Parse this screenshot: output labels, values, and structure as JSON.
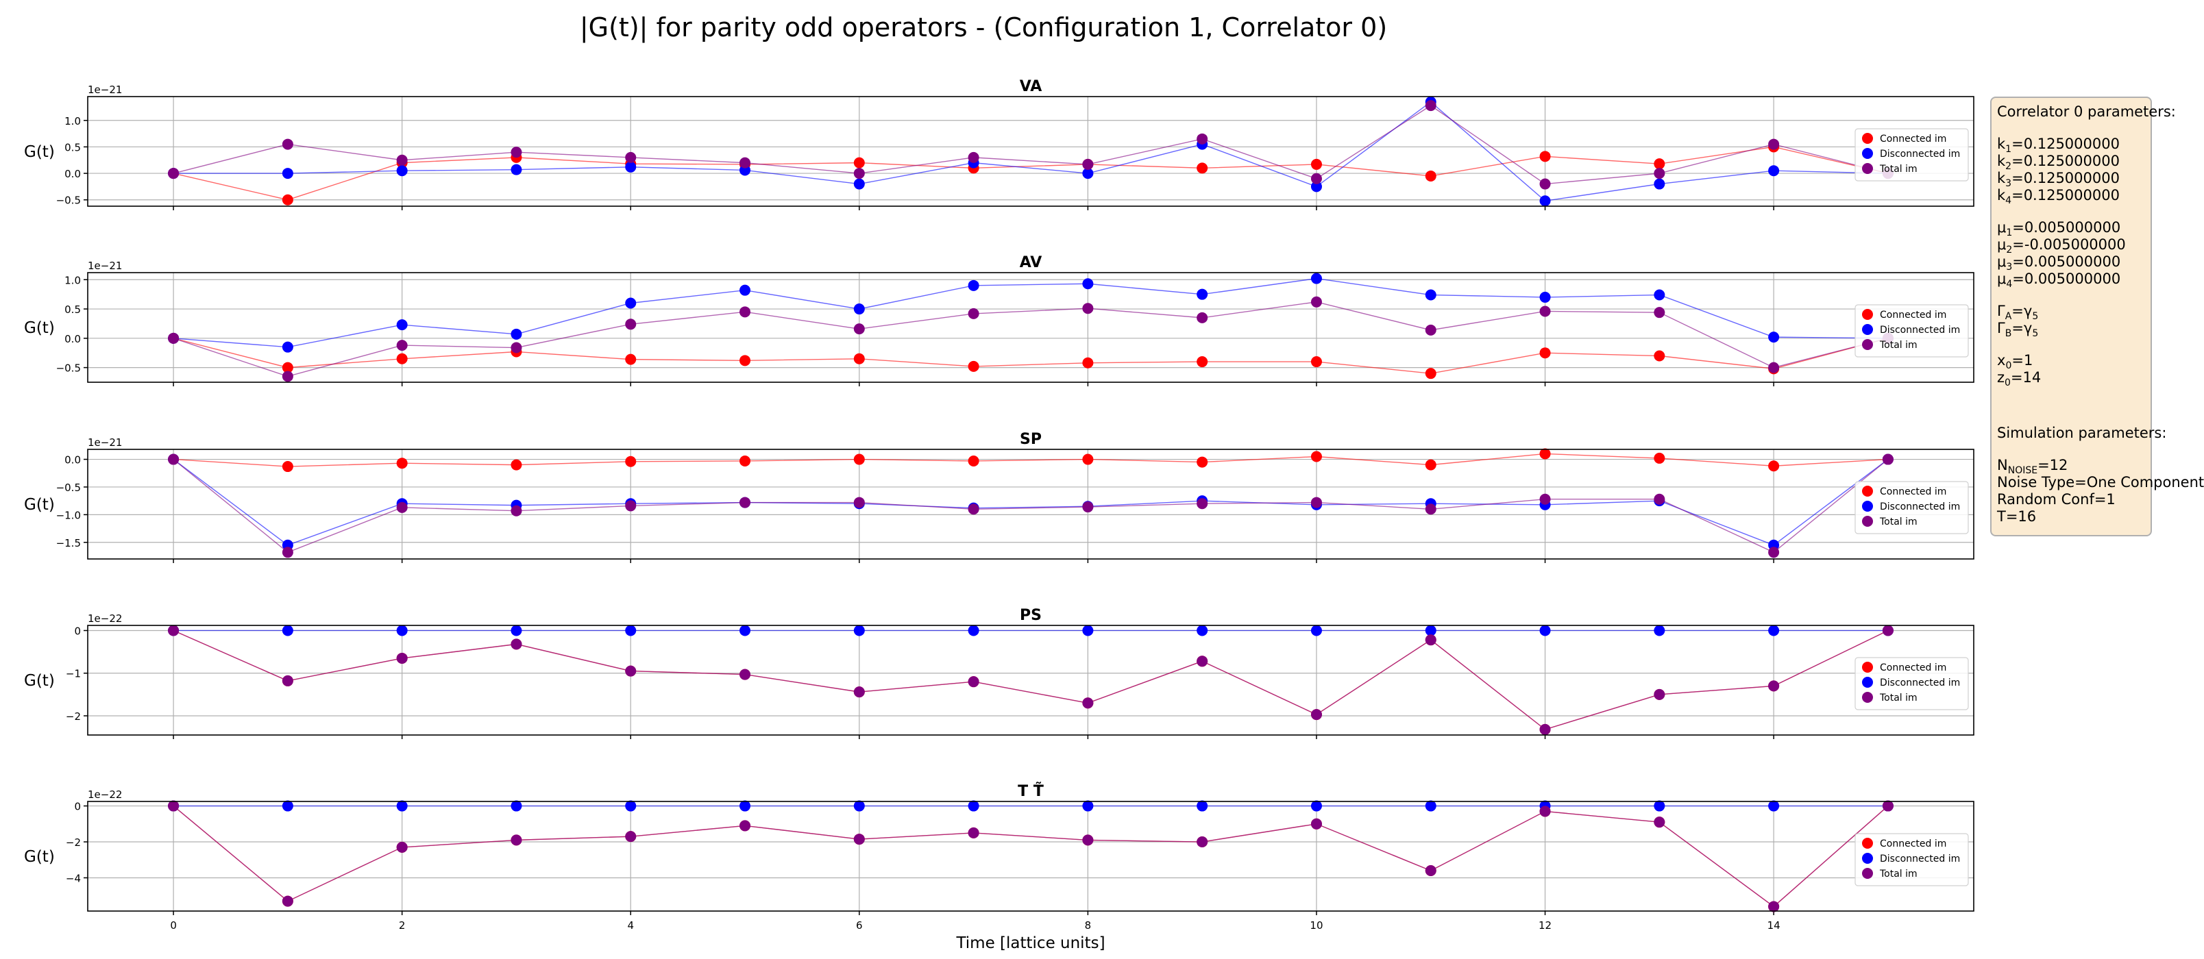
{
  "title": "|G(t)| for parity odd operators - (Configuration 1, Correlator 0)",
  "chart_data": [
    {
      "type": "line",
      "title": "VA",
      "ylabel": "G(t)",
      "xlabel": "",
      "exponent": "1e−21",
      "ylim": [
        -0.62,
        1.45
      ],
      "yticks": [
        -0.5,
        0.0,
        0.5,
        1.0
      ],
      "yticklabels": [
        "−0.5",
        "0.0",
        "0.5",
        "1.0"
      ],
      "x": [
        0,
        1,
        2,
        3,
        4,
        5,
        6,
        7,
        8,
        9,
        10,
        11,
        12,
        13,
        14,
        15
      ],
      "series": [
        {
          "name": "Connected im",
          "color": "#ff0000",
          "values": [
            0,
            -0.5,
            0.2,
            0.3,
            0.18,
            0.17,
            0.2,
            0.1,
            0.17,
            0.1,
            0.17,
            -0.05,
            0.32,
            0.18,
            0.5,
            0
          ]
        },
        {
          "name": "Disconnected im",
          "color": "#0000ff",
          "values": [
            0,
            0,
            0.05,
            0.07,
            0.12,
            0.06,
            -0.2,
            0.2,
            0,
            0.55,
            -0.25,
            1.35,
            -0.52,
            -0.2,
            0.05,
            0
          ]
        },
        {
          "name": "Total im",
          "color": "#800080",
          "values": [
            0,
            0.55,
            0.25,
            0.4,
            0.3,
            0.2,
            0,
            0.3,
            0.17,
            0.65,
            -0.1,
            1.28,
            -0.2,
            0,
            0.55,
            0
          ]
        }
      ],
      "legend": "center-right"
    },
    {
      "type": "line",
      "title": "AV",
      "ylabel": "G(t)",
      "xlabel": "",
      "exponent": "1e−21",
      "ylim": [
        -0.75,
        1.12
      ],
      "yticks": [
        -0.5,
        0.0,
        0.5,
        1.0
      ],
      "yticklabels": [
        "−0.5",
        "0.0",
        "0.5",
        "1.0"
      ],
      "x": [
        0,
        1,
        2,
        3,
        4,
        5,
        6,
        7,
        8,
        9,
        10,
        11,
        12,
        13,
        14,
        15
      ],
      "series": [
        {
          "name": "Connected im",
          "color": "#ff0000",
          "values": [
            0,
            -0.5,
            -0.35,
            -0.23,
            -0.36,
            -0.38,
            -0.35,
            -0.48,
            -0.42,
            -0.4,
            -0.4,
            -0.6,
            -0.25,
            -0.3,
            -0.52,
            0
          ]
        },
        {
          "name": "Disconnected im",
          "color": "#0000ff",
          "values": [
            0,
            -0.15,
            0.23,
            0.07,
            0.6,
            0.82,
            0.5,
            0.9,
            0.93,
            0.75,
            1.02,
            0.74,
            0.7,
            0.74,
            0.02,
            0
          ]
        },
        {
          "name": "Total im",
          "color": "#800080",
          "values": [
            0,
            -0.65,
            -0.12,
            -0.16,
            0.24,
            0.45,
            0.16,
            0.42,
            0.51,
            0.35,
            0.62,
            0.14,
            0.46,
            0.44,
            -0.5,
            0
          ]
        }
      ],
      "legend": "center-right"
    },
    {
      "type": "line",
      "title": "SP",
      "ylabel": "G(t)",
      "xlabel": "",
      "exponent": "1e−21",
      "ylim": [
        -1.8,
        0.18
      ],
      "yticks": [
        -1.5,
        -1.0,
        -0.5,
        0.0
      ],
      "yticklabels": [
        "−1.5",
        "−1.0",
        "−0.5",
        "0.0"
      ],
      "x": [
        0,
        1,
        2,
        3,
        4,
        5,
        6,
        7,
        8,
        9,
        10,
        11,
        12,
        13,
        14,
        15
      ],
      "series": [
        {
          "name": "Connected im",
          "color": "#ff0000",
          "values": [
            0,
            -0.13,
            -0.07,
            -0.1,
            -0.04,
            -0.03,
            0,
            -0.03,
            0,
            -0.05,
            0.05,
            -0.1,
            0.1,
            0.02,
            -0.12,
            0
          ]
        },
        {
          "name": "Disconnected im",
          "color": "#0000ff",
          "values": [
            0,
            -1.55,
            -0.8,
            -0.83,
            -0.8,
            -0.78,
            -0.8,
            -0.88,
            -0.85,
            -0.75,
            -0.82,
            -0.8,
            -0.82,
            -0.75,
            -1.55,
            0
          ]
        },
        {
          "name": "Total im",
          "color": "#800080",
          "values": [
            0,
            -1.68,
            -0.87,
            -0.93,
            -0.84,
            -0.78,
            -0.78,
            -0.9,
            -0.86,
            -0.8,
            -0.78,
            -0.9,
            -0.72,
            -0.72,
            -1.68,
            0
          ]
        }
      ],
      "legend": "center-right"
    },
    {
      "type": "line",
      "title": "PS",
      "ylabel": "G(t)",
      "xlabel": "",
      "exponent": "1e−22",
      "ylim": [
        -2.45,
        0.12
      ],
      "yticks": [
        -2,
        -1,
        0
      ],
      "yticklabels": [
        "−2",
        "−1",
        "0"
      ],
      "x": [
        0,
        1,
        2,
        3,
        4,
        5,
        6,
        7,
        8,
        9,
        10,
        11,
        12,
        13,
        14,
        15
      ],
      "series": [
        {
          "name": "Connected im",
          "color": "#ff0000",
          "values": [
            0,
            -1.18,
            -0.65,
            -0.32,
            -0.95,
            -1.03,
            -1.44,
            -1.2,
            -1.7,
            -0.72,
            -1.97,
            -0.22,
            -2.32,
            -1.5,
            -1.3,
            0
          ]
        },
        {
          "name": "Disconnected im",
          "color": "#0000ff",
          "values": [
            0,
            0,
            0,
            0,
            0,
            0,
            0,
            0,
            0,
            0,
            0,
            0,
            0,
            0,
            0,
            0
          ]
        },
        {
          "name": "Total im",
          "color": "#800080",
          "values": [
            0,
            -1.18,
            -0.65,
            -0.32,
            -0.95,
            -1.03,
            -1.44,
            -1.2,
            -1.7,
            -0.72,
            -1.97,
            -0.22,
            -2.32,
            -1.5,
            -1.3,
            0
          ]
        }
      ],
      "legend": "center-right"
    },
    {
      "type": "line",
      "title": "T T̃",
      "ylabel": "G(t)",
      "xlabel": "Time [lattice units]",
      "exponent": "1e−22",
      "ylim": [
        -5.85,
        0.25
      ],
      "yticks": [
        -4,
        -2,
        0
      ],
      "yticklabels": [
        "−4",
        "−2",
        "0"
      ],
      "xticks": [
        0,
        2,
        4,
        6,
        8,
        10,
        12,
        14
      ],
      "x": [
        0,
        1,
        2,
        3,
        4,
        5,
        6,
        7,
        8,
        9,
        10,
        11,
        12,
        13,
        14,
        15
      ],
      "series": [
        {
          "name": "Connected im",
          "color": "#ff0000",
          "values": [
            0,
            -5.3,
            -2.3,
            -1.9,
            -1.7,
            -1.1,
            -1.85,
            -1.5,
            -1.9,
            -2.0,
            -1.0,
            -3.6,
            -0.3,
            -0.9,
            -5.6,
            0
          ]
        },
        {
          "name": "Disconnected im",
          "color": "#0000ff",
          "values": [
            0,
            0,
            0,
            0,
            0,
            0,
            0,
            0,
            0,
            0,
            0,
            0,
            0,
            0,
            0,
            0
          ]
        },
        {
          "name": "Total im",
          "color": "#800080",
          "values": [
            0,
            -5.3,
            -2.3,
            -1.9,
            -1.7,
            -1.1,
            -1.85,
            -1.5,
            -1.9,
            -2.0,
            -1.0,
            -3.6,
            -0.3,
            -0.9,
            -5.6,
            0
          ]
        }
      ],
      "legend": "center-right"
    }
  ],
  "panel": {
    "correlator_header": "Correlator 0 parameters:",
    "k": [
      {
        "sym": "k",
        "sub": "1",
        "val": "=0.125000000"
      },
      {
        "sym": "k",
        "sub": "2",
        "val": "=0.125000000"
      },
      {
        "sym": "k",
        "sub": "3",
        "val": "=0.125000000"
      },
      {
        "sym": "k",
        "sub": "4",
        "val": "=0.125000000"
      }
    ],
    "mu": [
      {
        "sym": "μ",
        "sub": "1",
        "val": "=0.005000000"
      },
      {
        "sym": "μ",
        "sub": "2",
        "val": "=-0.005000000"
      },
      {
        "sym": "μ",
        "sub": "3",
        "val": "=0.005000000"
      },
      {
        "sym": "μ",
        "sub": "4",
        "val": "=0.005000000"
      }
    ],
    "gamma": [
      {
        "sym": "Γ",
        "sub": "A",
        "val": "=γ",
        "valsub": "5"
      },
      {
        "sym": "Γ",
        "sub": "B",
        "val": "=γ",
        "valsub": "5"
      }
    ],
    "pos": [
      {
        "sym": "x",
        "sub": "0",
        "val": "=1"
      },
      {
        "sym": "z",
        "sub": "0",
        "val": "=14"
      }
    ],
    "sim_header": "Simulation parameters:",
    "noise": {
      "sym": "N",
      "sub": "NOISE",
      "val": "=12"
    },
    "noise_type": "Noise Type=One Component",
    "random_conf": "Random Conf=1",
    "T": "T=16"
  }
}
